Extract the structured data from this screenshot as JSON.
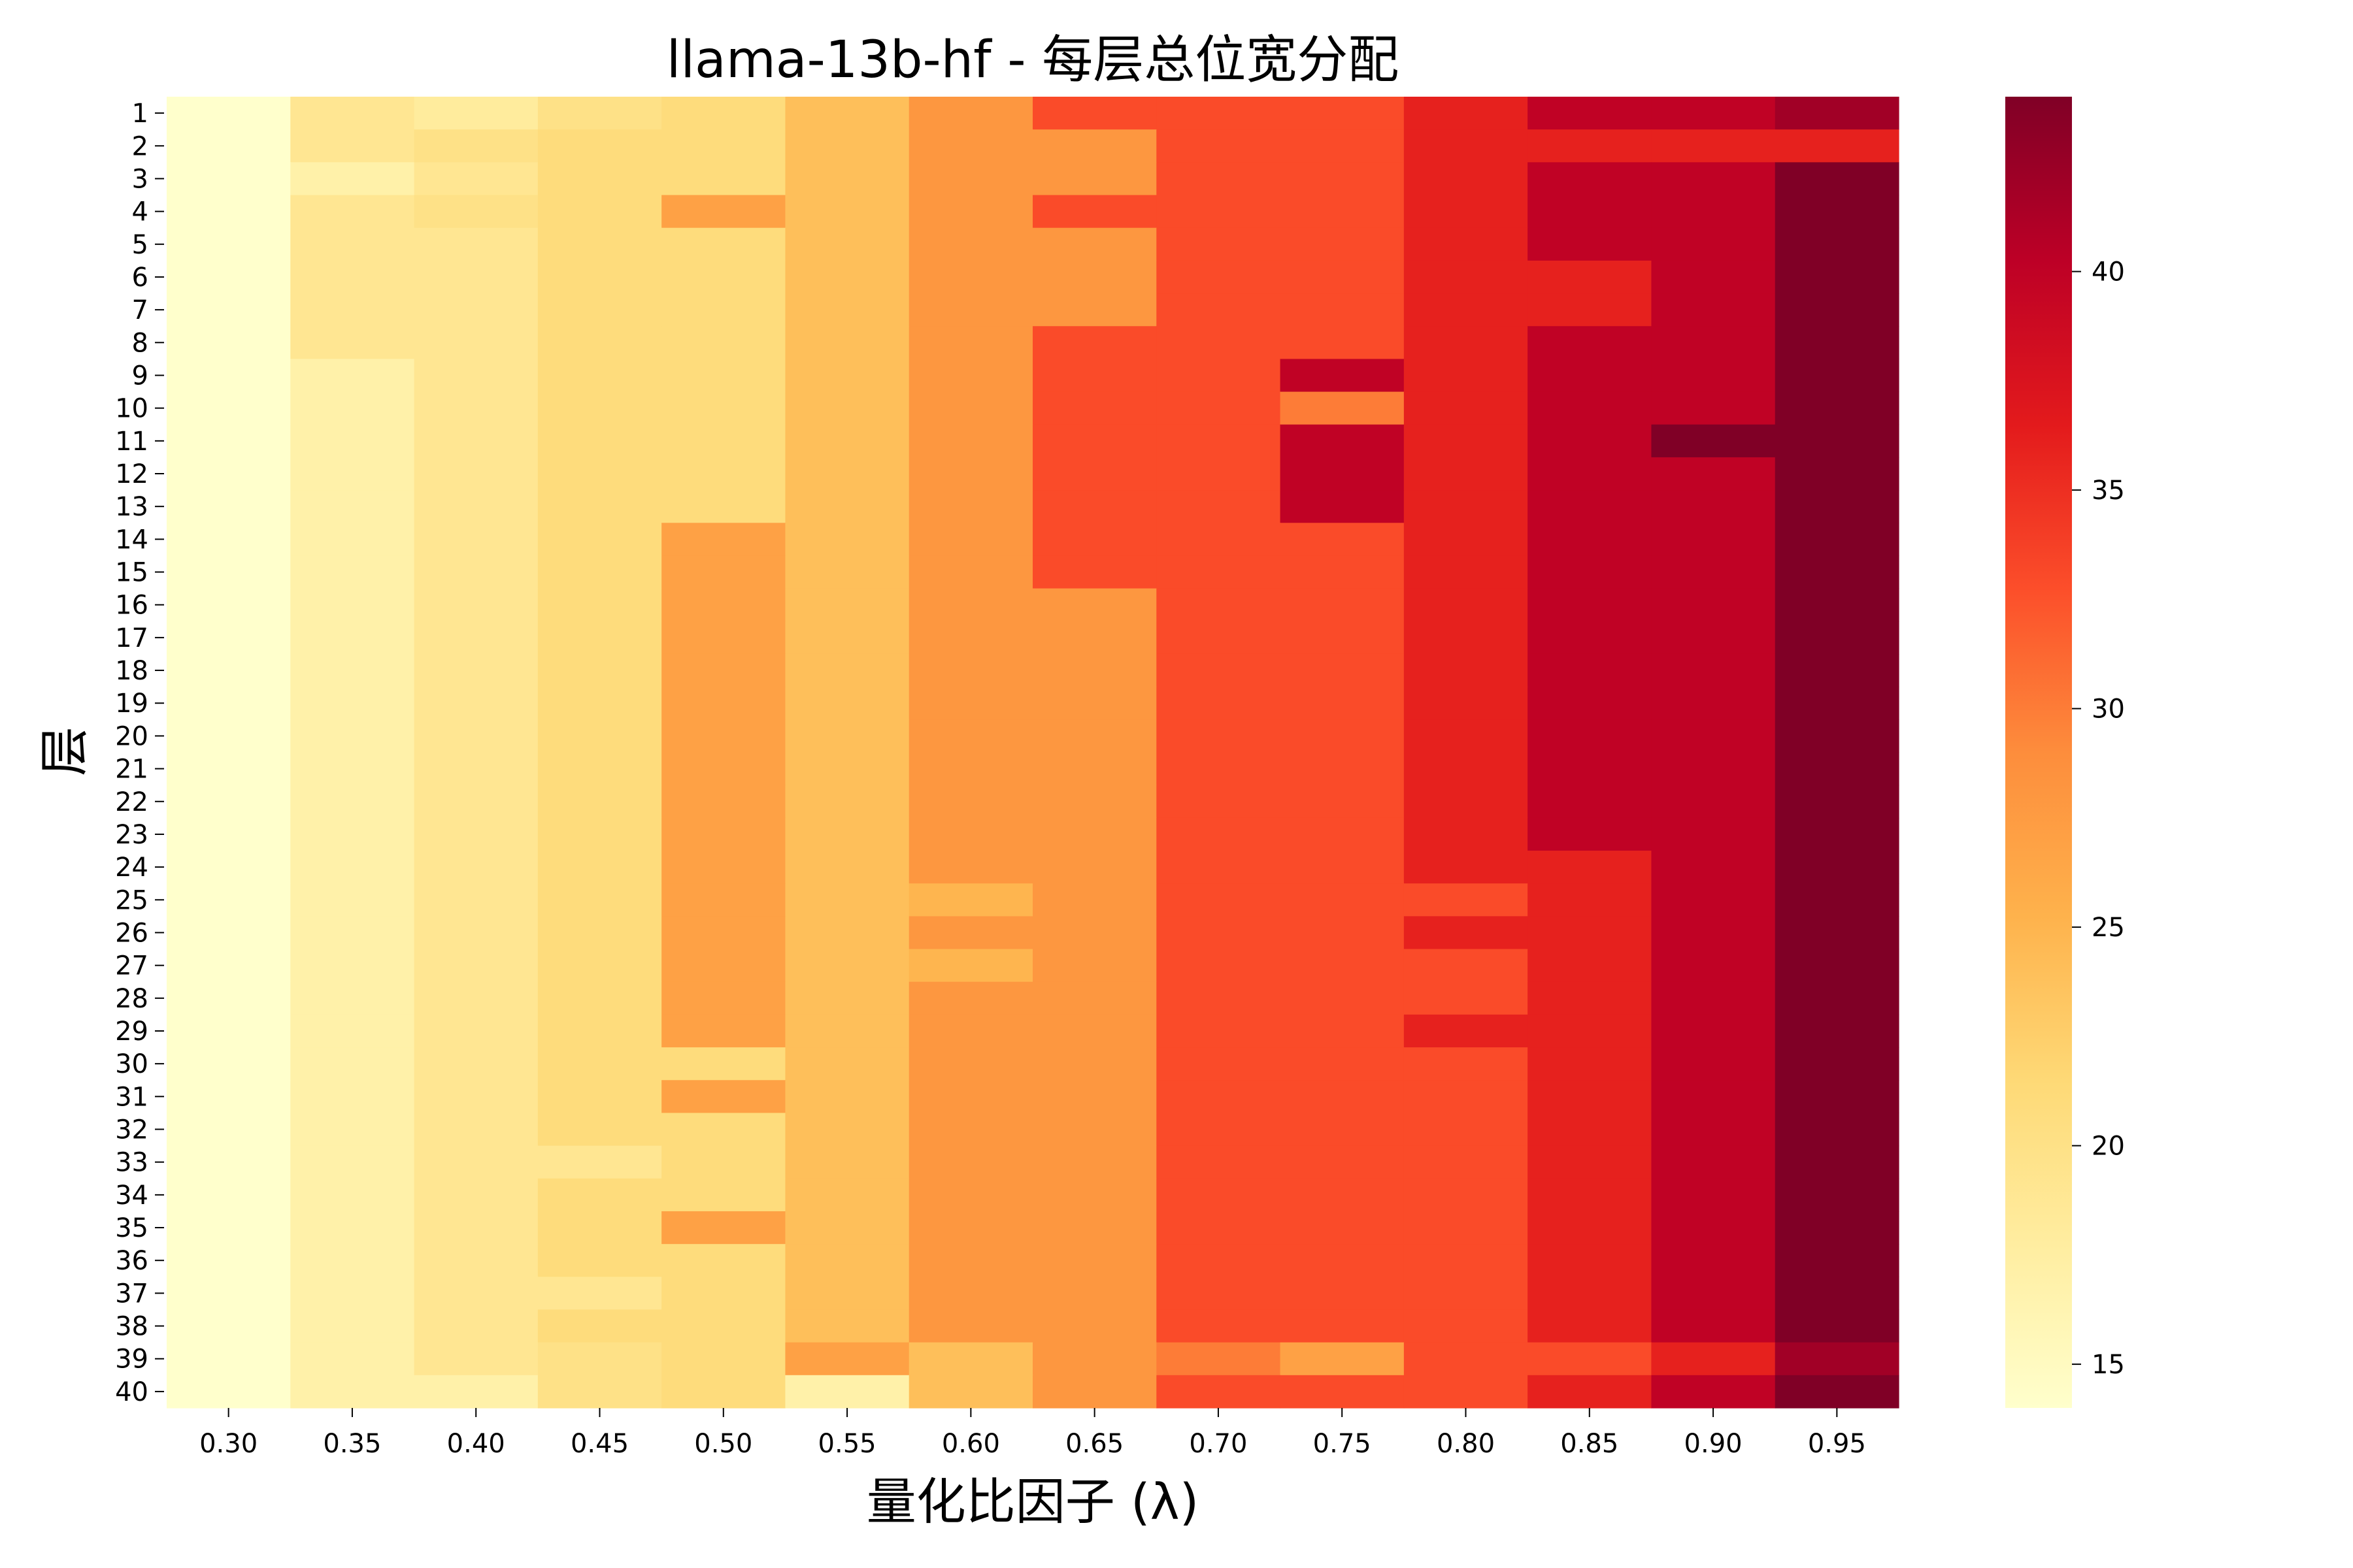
{
  "chart_data": {
    "type": "heatmap",
    "title": "llama-13b-hf - 每层总位宽分配",
    "xlabel": "量化比因子 (λ)",
    "ylabel": "层",
    "x_categories": [
      "0.30",
      "0.35",
      "0.40",
      "0.45",
      "0.50",
      "0.55",
      "0.60",
      "0.65",
      "0.70",
      "0.75",
      "0.80",
      "0.85",
      "0.90",
      "0.95"
    ],
    "y_categories": [
      "1",
      "2",
      "3",
      "4",
      "5",
      "6",
      "7",
      "8",
      "9",
      "10",
      "11",
      "12",
      "13",
      "14",
      "15",
      "16",
      "17",
      "18",
      "19",
      "20",
      "21",
      "22",
      "23",
      "24",
      "25",
      "26",
      "27",
      "28",
      "29",
      "30",
      "31",
      "32",
      "33",
      "34",
      "35",
      "36",
      "37",
      "38",
      "39",
      "40"
    ],
    "values": [
      [
        14,
        19,
        18,
        20,
        21,
        24,
        28,
        33,
        33,
        33,
        36,
        40,
        40,
        42
      ],
      [
        14,
        19,
        20,
        21,
        21,
        24,
        28,
        28,
        33,
        33,
        36,
        36,
        36,
        36
      ],
      [
        14,
        17,
        19,
        21,
        21,
        24,
        28,
        28,
        33,
        33,
        36,
        40,
        40,
        44
      ],
      [
        14,
        19,
        20,
        21,
        27,
        24,
        28,
        33,
        33,
        33,
        36,
        40,
        40,
        44
      ],
      [
        14,
        19,
        19,
        21,
        21,
        24,
        28,
        28,
        33,
        33,
        36,
        40,
        40,
        44
      ],
      [
        14,
        19,
        19,
        21,
        21,
        24,
        28,
        28,
        33,
        33,
        36,
        36,
        40,
        44
      ],
      [
        14,
        19,
        19,
        21,
        21,
        24,
        28,
        28,
        33,
        33,
        36,
        36,
        40,
        44
      ],
      [
        14,
        19,
        19,
        21,
        21,
        24,
        28,
        33,
        33,
        33,
        36,
        40,
        40,
        44
      ],
      [
        14,
        17,
        19,
        21,
        21,
        24,
        28,
        33,
        33,
        40,
        36,
        40,
        40,
        44
      ],
      [
        14,
        17,
        19,
        21,
        21,
        24,
        28,
        33,
        33,
        30,
        36,
        40,
        40,
        44
      ],
      [
        14,
        17,
        19,
        21,
        21,
        24,
        28,
        33,
        33,
        40,
        36,
        40,
        44,
        44
      ],
      [
        14,
        17,
        19,
        21,
        21,
        24,
        28,
        33,
        33,
        40,
        36,
        40,
        40,
        44
      ],
      [
        14,
        17,
        19,
        21,
        21,
        24,
        28,
        33,
        33,
        40,
        36,
        40,
        40,
        44
      ],
      [
        14,
        17,
        19,
        21,
        27,
        24,
        28,
        33,
        33,
        33,
        36,
        40,
        40,
        44
      ],
      [
        14,
        17,
        19,
        21,
        27,
        24,
        28,
        33,
        33,
        33,
        36,
        40,
        40,
        44
      ],
      [
        14,
        17,
        19,
        21,
        27,
        24,
        28,
        28,
        33,
        33,
        36,
        40,
        40,
        44
      ],
      [
        14,
        17,
        19,
        21,
        27,
        24,
        28,
        28,
        33,
        33,
        36,
        40,
        40,
        44
      ],
      [
        14,
        17,
        19,
        21,
        27,
        24,
        28,
        28,
        33,
        33,
        36,
        40,
        40,
        44
      ],
      [
        14,
        17,
        19,
        21,
        27,
        24,
        28,
        28,
        33,
        33,
        36,
        40,
        40,
        44
      ],
      [
        14,
        17,
        19,
        21,
        27,
        24,
        28,
        28,
        33,
        33,
        36,
        40,
        40,
        44
      ],
      [
        14,
        17,
        19,
        21,
        27,
        24,
        28,
        28,
        33,
        33,
        36,
        40,
        40,
        44
      ],
      [
        14,
        17,
        19,
        21,
        27,
        24,
        28,
        28,
        33,
        33,
        36,
        40,
        40,
        44
      ],
      [
        14,
        17,
        19,
        21,
        27,
        24,
        28,
        28,
        33,
        33,
        36,
        40,
        40,
        44
      ],
      [
        14,
        17,
        19,
        21,
        27,
        24,
        28,
        28,
        33,
        33,
        36,
        36,
        40,
        44
      ],
      [
        14,
        17,
        19,
        21,
        27,
        24,
        25,
        28,
        33,
        33,
        33,
        36,
        40,
        44
      ],
      [
        14,
        17,
        19,
        21,
        27,
        24,
        28,
        28,
        33,
        33,
        36,
        36,
        40,
        44
      ],
      [
        14,
        17,
        19,
        21,
        27,
        24,
        25,
        28,
        33,
        33,
        33,
        36,
        40,
        44
      ],
      [
        14,
        17,
        19,
        21,
        27,
        24,
        28,
        28,
        33,
        33,
        33,
        36,
        40,
        44
      ],
      [
        14,
        17,
        19,
        21,
        27,
        24,
        28,
        28,
        33,
        33,
        36,
        36,
        40,
        44
      ],
      [
        14,
        17,
        19,
        21,
        21,
        24,
        28,
        28,
        33,
        33,
        33,
        36,
        40,
        44
      ],
      [
        14,
        17,
        19,
        21,
        27,
        24,
        28,
        28,
        33,
        33,
        33,
        36,
        40,
        44
      ],
      [
        14,
        17,
        19,
        21,
        21,
        24,
        28,
        28,
        33,
        33,
        33,
        36,
        40,
        44
      ],
      [
        14,
        17,
        19,
        19,
        21,
        24,
        28,
        28,
        33,
        33,
        33,
        36,
        40,
        44
      ],
      [
        14,
        17,
        19,
        21,
        21,
        24,
        28,
        28,
        33,
        33,
        33,
        36,
        40,
        44
      ],
      [
        14,
        17,
        19,
        21,
        27,
        24,
        28,
        28,
        33,
        33,
        33,
        36,
        40,
        44
      ],
      [
        14,
        17,
        19,
        21,
        21,
        24,
        28,
        28,
        33,
        33,
        33,
        36,
        40,
        44
      ],
      [
        14,
        17,
        19,
        19,
        21,
        24,
        28,
        28,
        33,
        33,
        33,
        36,
        40,
        44
      ],
      [
        14,
        17,
        19,
        21,
        21,
        24,
        28,
        28,
        33,
        33,
        33,
        36,
        40,
        44
      ],
      [
        14,
        17,
        19,
        20,
        21,
        27,
        24,
        28,
        30,
        27,
        33,
        33,
        36,
        42
      ],
      [
        14,
        17,
        17,
        20,
        21,
        17,
        24,
        28,
        33,
        33,
        33,
        36,
        40,
        44
      ]
    ],
    "color_scale": {
      "vmin": 14,
      "vmax": 44,
      "colormap": "YlOrRd",
      "ticks": [
        15,
        20,
        25,
        30,
        35,
        40
      ]
    }
  }
}
